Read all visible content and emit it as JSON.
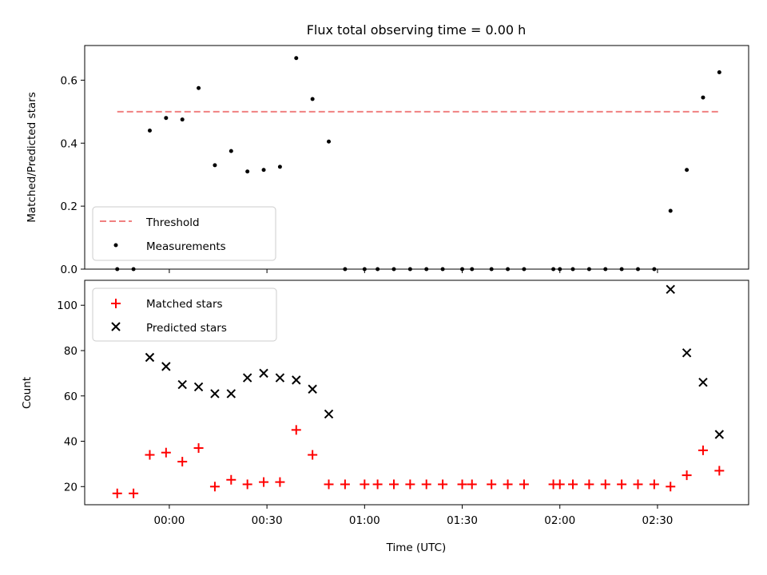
{
  "chart_data": [
    {
      "type": "scatter",
      "title": "Flux total observing time = 0.00 h",
      "xlabel": "",
      "ylabel": "Matched/Predicted stars",
      "ylim": [
        0,
        0.71
      ],
      "yticks": [
        0.0,
        0.2,
        0.4,
        0.6
      ],
      "ytick_labels": [
        "0.0",
        "0.2",
        "0.4",
        "0.6"
      ],
      "xlim_minutes": [
        -26,
        178
      ],
      "xticks_minutes": [
        0,
        30,
        60,
        90,
        120,
        150
      ],
      "show_xtick_labels": false,
      "grid": false,
      "legend_position": "lower-left",
      "colors": {
        "threshold": "#f08080",
        "measurements": "#000000"
      },
      "series": [
        {
          "name": "Threshold",
          "kind": "dashed-line",
          "x": [
            -16,
            169
          ],
          "y": [
            0.5,
            0.5
          ]
        },
        {
          "name": "Measurements",
          "kind": "points",
          "x": [
            -16,
            -11,
            -6,
            -1,
            4,
            9,
            14,
            19,
            24,
            29,
            34,
            39,
            44,
            49,
            54,
            60,
            64,
            69,
            74,
            79,
            84,
            90,
            93,
            99,
            104,
            109,
            118,
            120,
            124,
            129,
            134,
            139,
            144,
            149,
            154,
            159,
            164,
            169
          ],
          "y": [
            0.0,
            0.0,
            0.44,
            0.48,
            0.475,
            0.575,
            0.33,
            0.375,
            0.31,
            0.315,
            0.325,
            0.67,
            0.54,
            0.405,
            0.0,
            0.0,
            0.0,
            0.0,
            0.0,
            0.0,
            0.0,
            0.0,
            0.0,
            0.0,
            0.0,
            0.0,
            0.0,
            0.0,
            0.0,
            0.0,
            0.0,
            0.0,
            0.0,
            0.0,
            0.185,
            0.315,
            0.545,
            0.625
          ]
        }
      ]
    },
    {
      "type": "scatter",
      "title": "",
      "xlabel": "Time (UTC)",
      "ylabel": "Count",
      "ylim": [
        12,
        111
      ],
      "yticks": [
        20,
        40,
        60,
        80,
        100
      ],
      "ytick_labels": [
        "20",
        "40",
        "60",
        "80",
        "100"
      ],
      "xlim_minutes": [
        -26,
        178
      ],
      "xticks_minutes": [
        0,
        30,
        60,
        90,
        120,
        150
      ],
      "xtick_labels": [
        "00:00",
        "00:30",
        "01:00",
        "01:30",
        "02:00",
        "02:30"
      ],
      "grid": false,
      "legend_position": "upper-left",
      "colors": {
        "matched": "#ff0000",
        "predicted": "#000000"
      },
      "series": [
        {
          "name": "Matched stars",
          "marker": "plus",
          "x": [
            -16,
            -11,
            -6,
            -1,
            4,
            9,
            14,
            19,
            24,
            29,
            34,
            39,
            44,
            49,
            54,
            60,
            64,
            69,
            74,
            79,
            84,
            90,
            93,
            99,
            104,
            109,
            118,
            120,
            124,
            129,
            134,
            139,
            144,
            149,
            154,
            159,
            164,
            169
          ],
          "y": [
            17,
            17,
            34,
            35,
            31,
            37,
            20,
            23,
            21,
            22,
            22,
            45,
            34,
            21,
            21,
            21,
            21,
            21,
            21,
            21,
            21,
            21,
            21,
            21,
            21,
            21,
            21,
            21,
            21,
            21,
            21,
            21,
            21,
            21,
            20,
            25,
            36,
            27
          ]
        },
        {
          "name": "Predicted stars",
          "marker": "x",
          "x": [
            -6,
            -1,
            4,
            9,
            14,
            19,
            24,
            29,
            34,
            39,
            44,
            49,
            154,
            159,
            164,
            169
          ],
          "y": [
            77,
            73,
            65,
            64,
            61,
            61,
            68,
            70,
            68,
            67,
            63,
            52,
            107,
            79,
            66,
            43
          ]
        }
      ]
    }
  ]
}
